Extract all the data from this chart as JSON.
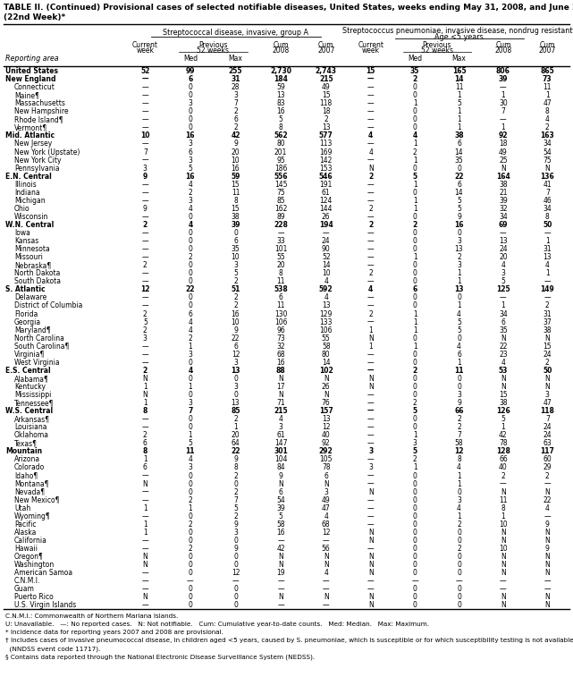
{
  "title_line1": "TABLE II. (Continued) Provisional cases of selected notifiable diseases, United States, weeks ending May 31, 2008, and June 2, 2007",
  "title_line2": "(22nd Week)*",
  "col_header_1": "Streptococcal disease, invasive, group A",
  "col_header_2": "Streptococcus pneumoniae, invasive disease, nondrug resistant†\nAge <5 years",
  "footnotes": [
    "C.N.M.I.: Commonwealth of Northern Mariana Islands.",
    "U: Unavailable.   —: No reported cases.   N: Not notifiable.   Cum: Cumulative year-to-date counts.   Med: Median.   Max: Maximum.",
    "* Incidence data for reporting years 2007 and 2008 are provisional.",
    "† Includes cases of invasive pneumococcal disease, in children aged <5 years, caused by S. pneumoniae, which is susceptible or for which susceptibility testing is not available",
    "  (NNDSS event code 11717).",
    "§ Contains data reported through the National Electronic Disease Surveillance System (NEDSS)."
  ],
  "rows": [
    [
      "United States",
      "52",
      "99",
      "255",
      "2,730",
      "2,743",
      "15",
      "35",
      "165",
      "806",
      "865"
    ],
    [
      "New England",
      "—",
      "6",
      "31",
      "184",
      "215",
      "—",
      "2",
      "14",
      "39",
      "73"
    ],
    [
      "Connecticut",
      "—",
      "0",
      "28",
      "59",
      "49",
      "—",
      "0",
      "11",
      "—",
      "11"
    ],
    [
      "Maine¶",
      "—",
      "0",
      "3",
      "13",
      "15",
      "—",
      "0",
      "1",
      "1",
      "1"
    ],
    [
      "Massachusetts",
      "—",
      "3",
      "7",
      "83",
      "118",
      "—",
      "1",
      "5",
      "30",
      "47"
    ],
    [
      "New Hampshire",
      "—",
      "0",
      "2",
      "16",
      "18",
      "—",
      "0",
      "1",
      "7",
      "8"
    ],
    [
      "Rhode Island¶",
      "—",
      "0",
      "6",
      "5",
      "2",
      "—",
      "0",
      "1",
      "—",
      "4"
    ],
    [
      "Vermont¶",
      "—",
      "0",
      "2",
      "8",
      "13",
      "—",
      "0",
      "1",
      "1",
      "2"
    ],
    [
      "Mid. Atlantic",
      "10",
      "16",
      "42",
      "562",
      "577",
      "4",
      "4",
      "38",
      "92",
      "163"
    ],
    [
      "New Jersey",
      "—",
      "3",
      "9",
      "80",
      "113",
      "—",
      "1",
      "6",
      "18",
      "34"
    ],
    [
      "New York (Upstate)",
      "7",
      "6",
      "20",
      "201",
      "169",
      "4",
      "2",
      "14",
      "49",
      "54"
    ],
    [
      "New York City",
      "—",
      "3",
      "10",
      "95",
      "142",
      "—",
      "1",
      "35",
      "25",
      "75"
    ],
    [
      "Pennsylvania",
      "3",
      "5",
      "16",
      "186",
      "153",
      "N",
      "0",
      "0",
      "N",
      "N"
    ],
    [
      "E.N. Central",
      "9",
      "16",
      "59",
      "556",
      "546",
      "2",
      "5",
      "22",
      "164",
      "136"
    ],
    [
      "Illinois",
      "—",
      "4",
      "15",
      "145",
      "191",
      "—",
      "1",
      "6",
      "38",
      "41"
    ],
    [
      "Indiana",
      "—",
      "2",
      "11",
      "75",
      "61",
      "—",
      "0",
      "14",
      "21",
      "7"
    ],
    [
      "Michigan",
      "—",
      "3",
      "8",
      "85",
      "124",
      "—",
      "1",
      "5",
      "39",
      "46"
    ],
    [
      "Ohio",
      "9",
      "4",
      "15",
      "162",
      "144",
      "2",
      "1",
      "5",
      "32",
      "34"
    ],
    [
      "Wisconsin",
      "—",
      "0",
      "38",
      "89",
      "26",
      "—",
      "0",
      "9",
      "34",
      "8"
    ],
    [
      "W.N. Central",
      "2",
      "4",
      "39",
      "228",
      "194",
      "2",
      "2",
      "16",
      "69",
      "50"
    ],
    [
      "Iowa",
      "—",
      "0",
      "0",
      "—",
      "—",
      "—",
      "0",
      "0",
      "—",
      "—"
    ],
    [
      "Kansas",
      "—",
      "0",
      "6",
      "33",
      "24",
      "—",
      "0",
      "3",
      "13",
      "1"
    ],
    [
      "Minnesota",
      "—",
      "0",
      "35",
      "101",
      "90",
      "—",
      "0",
      "13",
      "24",
      "31"
    ],
    [
      "Missouri",
      "—",
      "2",
      "10",
      "55",
      "52",
      "—",
      "1",
      "2",
      "20",
      "13"
    ],
    [
      "Nebraska¶",
      "2",
      "0",
      "3",
      "20",
      "14",
      "—",
      "0",
      "3",
      "4",
      "4"
    ],
    [
      "North Dakota",
      "—",
      "0",
      "5",
      "8",
      "10",
      "2",
      "0",
      "1",
      "3",
      "1"
    ],
    [
      "South Dakota",
      "—",
      "0",
      "2",
      "11",
      "4",
      "—",
      "0",
      "1",
      "5",
      "—"
    ],
    [
      "S. Atlantic",
      "12",
      "22",
      "51",
      "538",
      "592",
      "4",
      "6",
      "13",
      "125",
      "149"
    ],
    [
      "Delaware",
      "—",
      "0",
      "2",
      "6",
      "4",
      "—",
      "0",
      "0",
      "—",
      "—"
    ],
    [
      "District of Columbia",
      "—",
      "0",
      "2",
      "11",
      "13",
      "—",
      "0",
      "1",
      "1",
      "2"
    ],
    [
      "Florida",
      "2",
      "6",
      "16",
      "130",
      "129",
      "2",
      "1",
      "4",
      "34",
      "31"
    ],
    [
      "Georgia",
      "5",
      "4",
      "10",
      "106",
      "133",
      "—",
      "1",
      "5",
      "6",
      "37"
    ],
    [
      "Maryland¶",
      "2",
      "4",
      "9",
      "96",
      "106",
      "1",
      "1",
      "5",
      "35",
      "38"
    ],
    [
      "North Carolina",
      "3",
      "2",
      "22",
      "73",
      "55",
      "N",
      "0",
      "0",
      "N",
      "N"
    ],
    [
      "South Carolina¶",
      "—",
      "1",
      "6",
      "32",
      "58",
      "1",
      "1",
      "4",
      "22",
      "15"
    ],
    [
      "Virginia¶",
      "—",
      "3",
      "12",
      "68",
      "80",
      "—",
      "0",
      "6",
      "23",
      "24"
    ],
    [
      "West Virginia",
      "—",
      "0",
      "3",
      "16",
      "14",
      "—",
      "0",
      "1",
      "4",
      "2"
    ],
    [
      "E.S. Central",
      "2",
      "4",
      "13",
      "88",
      "102",
      "—",
      "2",
      "11",
      "53",
      "50"
    ],
    [
      "Alabama¶",
      "N",
      "0",
      "0",
      "N",
      "N",
      "N",
      "0",
      "0",
      "N",
      "N"
    ],
    [
      "Kentucky",
      "1",
      "1",
      "3",
      "17",
      "26",
      "N",
      "0",
      "0",
      "N",
      "N"
    ],
    [
      "Mississippi",
      "N",
      "0",
      "0",
      "N",
      "N",
      "—",
      "0",
      "3",
      "15",
      "3"
    ],
    [
      "Tennessee¶",
      "1",
      "3",
      "13",
      "71",
      "76",
      "—",
      "2",
      "9",
      "38",
      "47"
    ],
    [
      "W.S. Central",
      "8",
      "7",
      "85",
      "215",
      "157",
      "—",
      "5",
      "66",
      "126",
      "118"
    ],
    [
      "Arkansas¶",
      "—",
      "0",
      "2",
      "4",
      "13",
      "—",
      "0",
      "2",
      "5",
      "7"
    ],
    [
      "Louisiana",
      "—",
      "0",
      "1",
      "3",
      "12",
      "—",
      "0",
      "2",
      "1",
      "24"
    ],
    [
      "Oklahoma",
      "2",
      "1",
      "20",
      "61",
      "40",
      "—",
      "1",
      "7",
      "42",
      "24"
    ],
    [
      "Texas¶",
      "6",
      "5",
      "64",
      "147",
      "92",
      "—",
      "3",
      "58",
      "78",
      "63"
    ],
    [
      "Mountain",
      "8",
      "11",
      "22",
      "301",
      "292",
      "3",
      "5",
      "12",
      "128",
      "117"
    ],
    [
      "Arizona",
      "1",
      "4",
      "9",
      "104",
      "105",
      "—",
      "2",
      "8",
      "66",
      "60"
    ],
    [
      "Colorado",
      "6",
      "3",
      "8",
      "84",
      "78",
      "3",
      "1",
      "4",
      "40",
      "29"
    ],
    [
      "Idaho¶",
      "—",
      "0",
      "2",
      "9",
      "6",
      "—",
      "0",
      "1",
      "2",
      "2"
    ],
    [
      "Montana¶",
      "N",
      "0",
      "0",
      "N",
      "N",
      "—",
      "0",
      "1",
      "—",
      "—"
    ],
    [
      "Nevada¶",
      "—",
      "0",
      "2",
      "6",
      "3",
      "N",
      "0",
      "0",
      "N",
      "N"
    ],
    [
      "New Mexico¶",
      "—",
      "2",
      "7",
      "54",
      "49",
      "—",
      "0",
      "3",
      "11",
      "22"
    ],
    [
      "Utah",
      "1",
      "1",
      "5",
      "39",
      "47",
      "—",
      "0",
      "4",
      "8",
      "4"
    ],
    [
      "Wyoming¶",
      "—",
      "0",
      "2",
      "5",
      "4",
      "—",
      "0",
      "1",
      "1",
      "—"
    ],
    [
      "Pacific",
      "1",
      "2",
      "9",
      "58",
      "68",
      "—",
      "0",
      "2",
      "10",
      "9"
    ],
    [
      "Alaska",
      "1",
      "0",
      "3",
      "16",
      "12",
      "N",
      "0",
      "0",
      "N",
      "N"
    ],
    [
      "California",
      "—",
      "0",
      "0",
      "—",
      "—",
      "N",
      "0",
      "0",
      "N",
      "N"
    ],
    [
      "Hawaii",
      "—",
      "2",
      "9",
      "42",
      "56",
      "—",
      "0",
      "2",
      "10",
      "9"
    ],
    [
      "Oregon¶",
      "N",
      "0",
      "0",
      "N",
      "N",
      "N",
      "0",
      "0",
      "N",
      "N"
    ],
    [
      "Washington",
      "N",
      "0",
      "0",
      "N",
      "N",
      "N",
      "0",
      "0",
      "N",
      "N"
    ],
    [
      "American Samoa",
      "—",
      "0",
      "12",
      "19",
      "4",
      "N",
      "0",
      "0",
      "N",
      "N"
    ],
    [
      "C.N.M.I.",
      "—",
      "—",
      "—",
      "—",
      "—",
      "—",
      "—",
      "—",
      "—",
      "—"
    ],
    [
      "Guam",
      "—",
      "0",
      "0",
      "—",
      "—",
      "—",
      "0",
      "0",
      "—",
      "—"
    ],
    [
      "Puerto Rico",
      "N",
      "0",
      "0",
      "N",
      "N",
      "N",
      "0",
      "0",
      "N",
      "N"
    ],
    [
      "U.S. Virgin Islands",
      "—",
      "0",
      "0",
      "—",
      "—",
      "N",
      "0",
      "0",
      "N",
      "N"
    ]
  ],
  "bold_rows": [
    0,
    1,
    8,
    13,
    19,
    27,
    37,
    42,
    47
  ],
  "region_rows": [
    1,
    8,
    13,
    19,
    27,
    37,
    42,
    47
  ],
  "us_row": [
    0
  ]
}
